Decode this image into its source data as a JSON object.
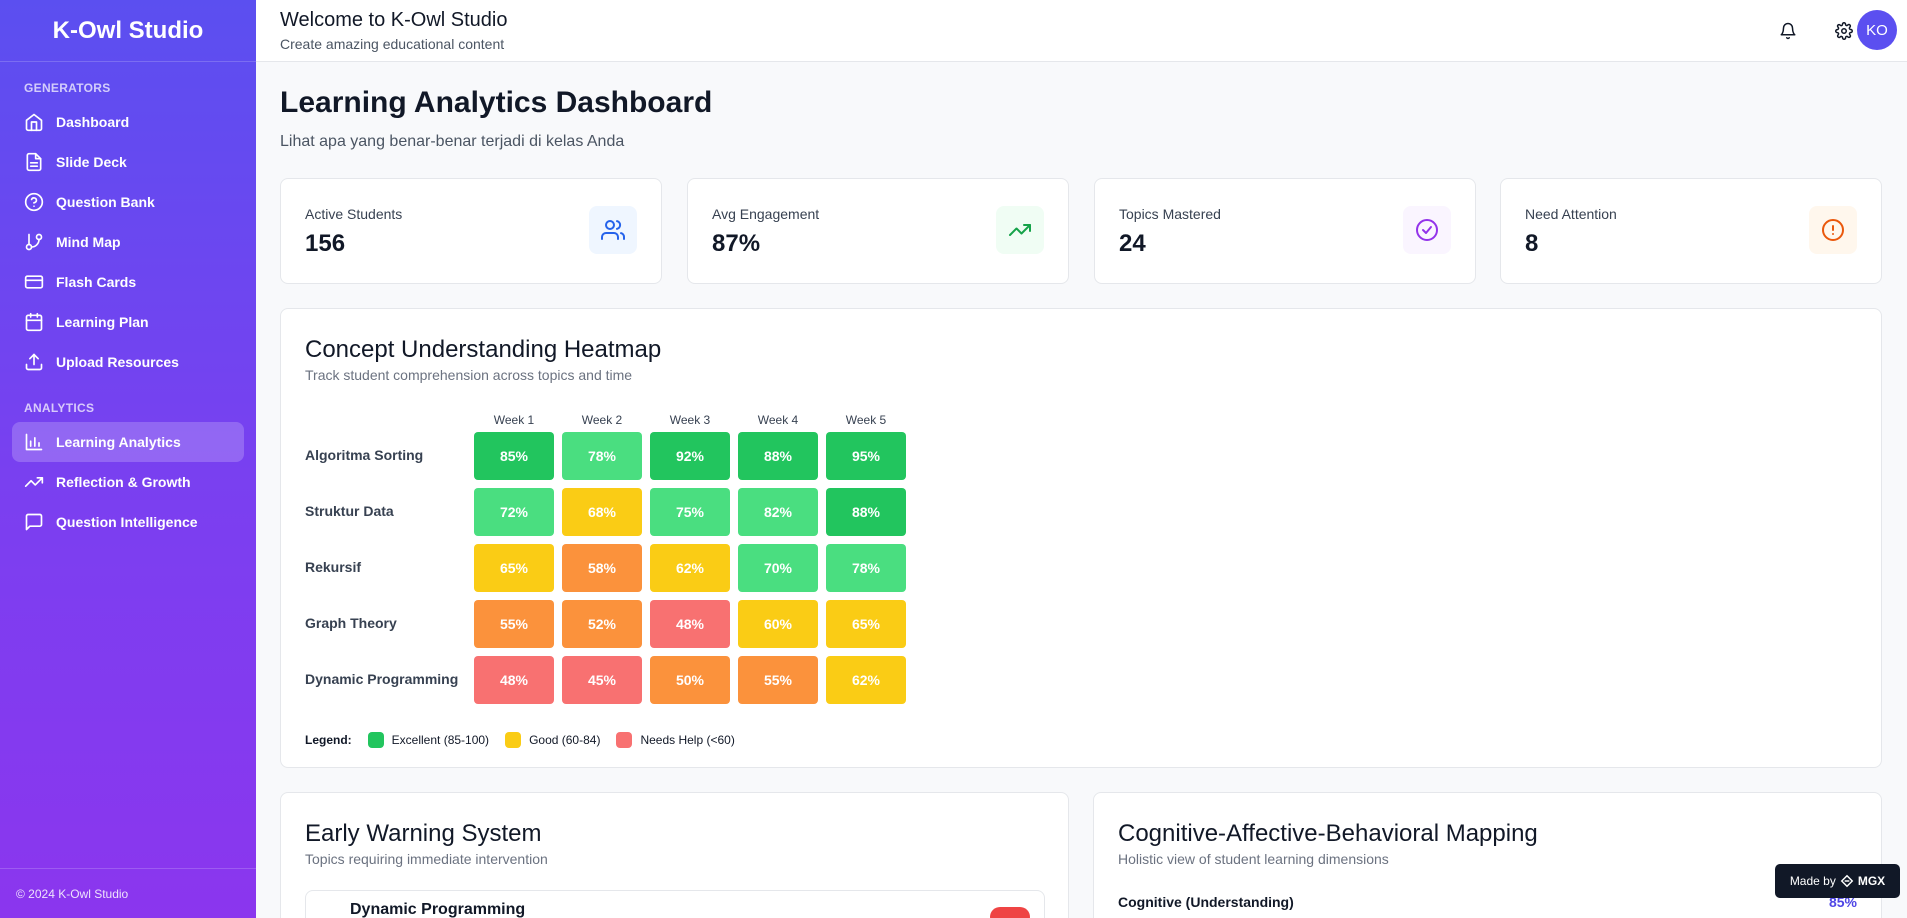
{
  "sidebar": {
    "brand": "K-Owl Studio",
    "generators_label": "GENERATORS",
    "generators": [
      {
        "label": "Dashboard",
        "icon": "home-icon"
      },
      {
        "label": "Slide Deck",
        "icon": "file-icon"
      },
      {
        "label": "Question Bank",
        "icon": "help-circle-icon"
      },
      {
        "label": "Mind Map",
        "icon": "git-branch-icon"
      },
      {
        "label": "Flash Cards",
        "icon": "credit-card-icon"
      },
      {
        "label": "Learning Plan",
        "icon": "calendar-icon"
      },
      {
        "label": "Upload Resources",
        "icon": "upload-icon"
      }
    ],
    "analytics_label": "ANALYTICS",
    "analytics": [
      {
        "label": "Learning Analytics",
        "icon": "bar-chart-icon",
        "active": true
      },
      {
        "label": "Reflection & Growth",
        "icon": "trending-up-icon"
      },
      {
        "label": "Question Intelligence",
        "icon": "message-square-icon"
      }
    ],
    "footer": "© 2024 K-Owl Studio"
  },
  "header": {
    "title": "Welcome to K-Owl Studio",
    "subtitle": "Create amazing educational content",
    "avatar_initials": "KO",
    "icons": [
      "bell-icon",
      "gear-icon"
    ]
  },
  "page": {
    "title": "Learning Analytics Dashboard",
    "subtitle": "Lihat apa yang benar-benar terjadi di kelas Anda"
  },
  "stats": [
    {
      "label": "Active Students",
      "value": "156",
      "icon": "users-icon",
      "color": "#2563eb",
      "bg": "#eff6ff"
    },
    {
      "label": "Avg Engagement",
      "value": "87%",
      "icon": "trending-up-icon",
      "color": "#16a34a",
      "bg": "#f0fdf4"
    },
    {
      "label": "Topics Mastered",
      "value": "24",
      "icon": "check-circle-icon",
      "color": "#9333ea",
      "bg": "#faf5ff"
    },
    {
      "label": "Need Attention",
      "value": "8",
      "icon": "alert-circle-icon",
      "color": "#ea580c",
      "bg": "#fff7ed"
    }
  ],
  "heatmap": {
    "title": "Concept Understanding Heatmap",
    "subtitle": "Track student comprehension across topics and time",
    "weeks": [
      "Week 1",
      "Week 2",
      "Week 3",
      "Week 4",
      "Week 5"
    ],
    "rows": [
      {
        "topic": "Algoritma Sorting",
        "values": [
          "85%",
          "78%",
          "92%",
          "88%",
          "95%"
        ]
      },
      {
        "topic": "Struktur Data",
        "values": [
          "72%",
          "68%",
          "75%",
          "82%",
          "88%"
        ]
      },
      {
        "topic": "Rekursif",
        "values": [
          "65%",
          "58%",
          "62%",
          "70%",
          "78%"
        ]
      },
      {
        "topic": "Graph Theory",
        "values": [
          "55%",
          "52%",
          "48%",
          "60%",
          "65%"
        ]
      },
      {
        "topic": "Dynamic Programming",
        "values": [
          "48%",
          "45%",
          "50%",
          "55%",
          "62%"
        ]
      }
    ],
    "legend_title": "Legend:",
    "legend": [
      {
        "label": "Excellent (85-100)",
        "color": "#22c55e"
      },
      {
        "label": "Good (60-84)",
        "color": "#facc15"
      },
      {
        "label": "Needs Help (<60)",
        "color": "#f87171"
      }
    ]
  },
  "early_warning": {
    "title": "Early Warning System",
    "subtitle": "Topics requiring immediate intervention",
    "first_item": "Dynamic Programming"
  },
  "cab_mapping": {
    "title": "Cognitive-Affective-Behavioral Mapping",
    "subtitle": "Holistic view of student learning dimensions",
    "first_label": "Cognitive (Understanding)",
    "first_value": "85%"
  },
  "badge": {
    "made_by": "Made by",
    "brand": "MGX"
  }
}
